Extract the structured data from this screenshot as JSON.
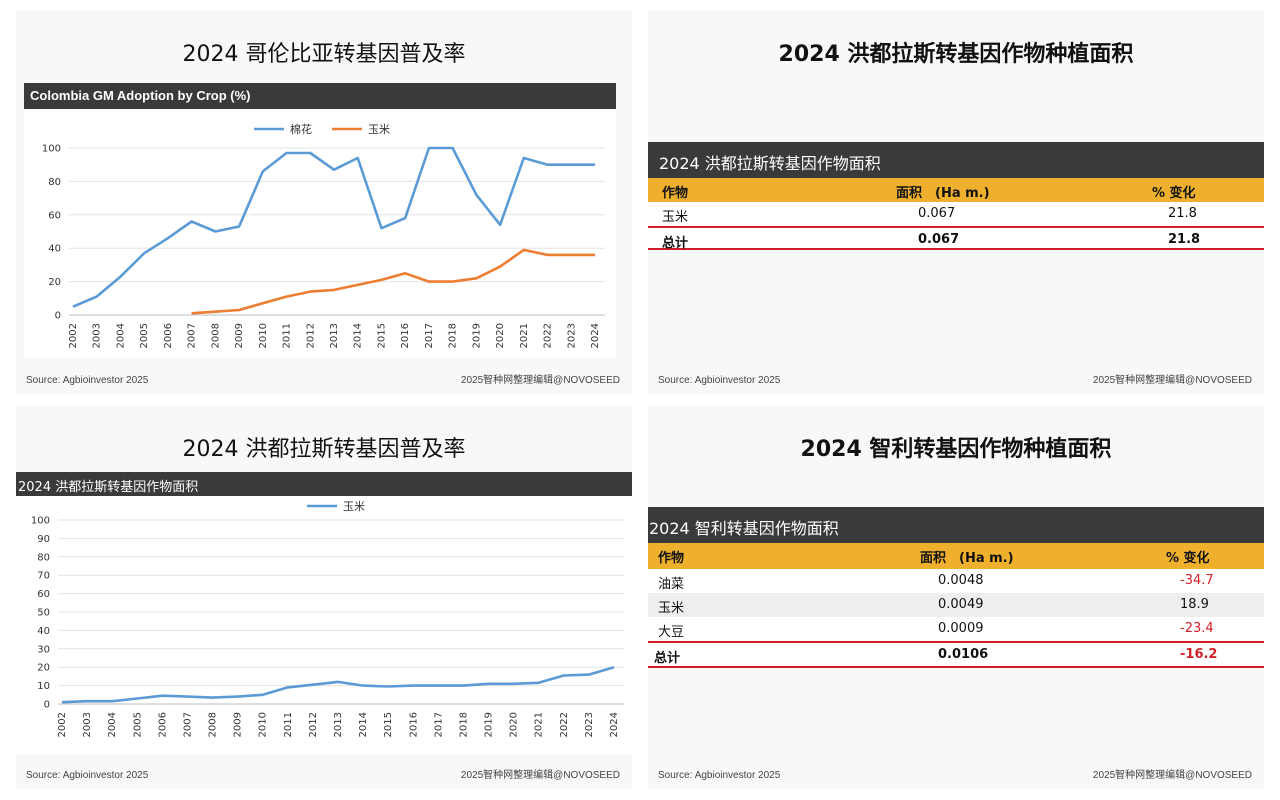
{
  "panel1": {
    "title": "2024 哥伦比亚转基因普及率",
    "header": "Colombia GM Adoption by Crop (%)",
    "source": "Source: Agbioinvestor 2025",
    "credit": "2025智种网整理编辑@NOVOSEED"
  },
  "panel2": {
    "title": "2024 洪都拉斯转基因作物种植面积",
    "table_header": "2024 洪都拉斯转基因作物面积",
    "columns": [
      "作物",
      "面积　(Ha m.)",
      "%  变化"
    ],
    "rows": [
      {
        "crop": "玉米",
        "area": "0.067",
        "change": "21.8"
      }
    ],
    "total": {
      "crop": "总计",
      "area": "0.067",
      "change": "21.8"
    },
    "source": "Source: Agbioinvestor 2025",
    "credit": "2025智种网整理编辑@NOVOSEED"
  },
  "panel3": {
    "title": "2024 洪都拉斯转基因普及率",
    "header": "2024 洪都拉斯转基因作物面积",
    "source": "Source: Agbioinvestor 2025",
    "credit": "2025智种网整理编辑@NOVOSEED"
  },
  "panel4": {
    "title": "2024 智利转基因作物种植面积",
    "table_header": "2024 智利转基因作物面积",
    "columns": [
      "作物",
      "面积　(Ha m.)",
      "%  变化"
    ],
    "rows": [
      {
        "crop": "油菜",
        "area": "0.0048",
        "change": "-34.7"
      },
      {
        "crop": "玉米",
        "area": "0.0049",
        "change": "18.9"
      },
      {
        "crop": "大豆",
        "area": "0.0009",
        "change": "-23.4"
      }
    ],
    "total": {
      "crop": "总计",
      "area": "0.0106",
      "change": "-16.2"
    },
    "source": "Source: Agbioinvestor 2025",
    "credit": "2025智种网整理编辑@NOVOSEED"
  },
  "chart_data": [
    {
      "type": "line",
      "title": "Colombia GM Adoption by Crop (%)",
      "x": [
        "2002",
        "2003",
        "2004",
        "2005",
        "2006",
        "2007",
        "2008",
        "2009",
        "2010",
        "2011",
        "2012",
        "2013",
        "2014",
        "2015",
        "2016",
        "2017",
        "2018",
        "2019",
        "2020",
        "2021",
        "2022",
        "2023",
        "2024"
      ],
      "ylim": [
        0,
        100
      ],
      "yticks": [
        0,
        20,
        40,
        60,
        80,
        100
      ],
      "grid": true,
      "legend": "top-center",
      "series": [
        {
          "name": "棉花",
          "color": "#5b9bd5",
          "values": [
            5,
            11,
            23,
            37,
            46,
            56,
            50,
            53,
            86,
            97,
            97,
            87,
            94,
            52,
            58,
            100,
            100,
            72,
            54,
            94,
            90,
            90,
            90
          ]
        },
        {
          "name": "玉米",
          "color": "#ed7d31",
          "values": [
            null,
            null,
            null,
            null,
            null,
            1,
            2,
            3,
            7,
            11,
            14,
            15,
            18,
            21,
            25,
            20,
            20,
            22,
            29,
            39,
            36,
            36,
            36
          ]
        }
      ]
    },
    {
      "type": "line",
      "x": [
        "2002",
        "2003",
        "2004",
        "2005",
        "2006",
        "2007",
        "2008",
        "2009",
        "2010",
        "2011",
        "2012",
        "2013",
        "2014",
        "2015",
        "2016",
        "2017",
        "2018",
        "2019",
        "2020",
        "2021",
        "2022",
        "2023",
        "2024"
      ],
      "ylim": [
        0,
        100
      ],
      "yticks": [
        0,
        10,
        20,
        30,
        40,
        50,
        60,
        70,
        80,
        90,
        100
      ],
      "grid": true,
      "legend": "top-center",
      "series": [
        {
          "name": "玉米",
          "color": "#5b9bd5",
          "values": [
            1,
            1.5,
            1.5,
            3,
            4.5,
            4,
            3.5,
            4,
            5,
            9,
            10.5,
            12,
            10,
            9.5,
            10,
            10,
            10,
            11,
            11,
            11.5,
            15.5,
            16,
            20
          ]
        }
      ]
    }
  ]
}
